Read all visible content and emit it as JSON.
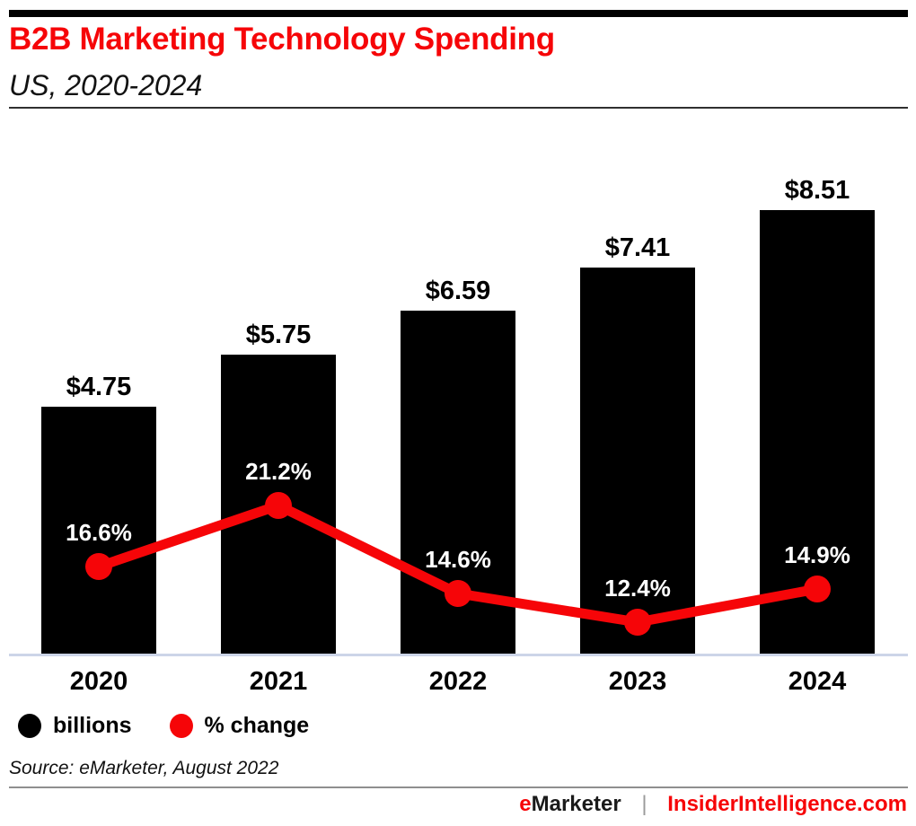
{
  "colors": {
    "red": "#f60508",
    "bar": "#000000",
    "axis_line": "#ccd5e8",
    "text": "#000000",
    "pct_label_text": "#ffffff"
  },
  "header": {
    "title": "B2B Marketing Technology Spending",
    "subtitle": "US, 2020-2024"
  },
  "chart_data": {
    "type": "bar+line",
    "title": "B2B Marketing Technology Spending",
    "subtitle": "US, 2020-2024",
    "categories": [
      "2020",
      "2021",
      "2022",
      "2023",
      "2024"
    ],
    "series": [
      {
        "name": "billions",
        "type": "bar",
        "values": [
          4.75,
          5.75,
          6.59,
          7.41,
          8.51
        ],
        "labels": [
          "$4.75",
          "$5.75",
          "$6.59",
          "$7.41",
          "$8.51"
        ],
        "color": "#000000"
      },
      {
        "name": "% change",
        "type": "line",
        "values": [
          16.6,
          21.2,
          14.6,
          12.4,
          14.9
        ],
        "labels": [
          "16.6%",
          "21.2%",
          "14.6%",
          "12.4%",
          "14.9%"
        ],
        "color": "#f60508"
      }
    ],
    "legend": [
      {
        "label": "billions",
        "color": "#000000"
      },
      {
        "label": "% change",
        "color": "#f60508"
      }
    ],
    "legend_position": "bottom-left",
    "grid": false,
    "xlabel": "",
    "ylabel": ""
  },
  "source": "Source: eMarketer, August 2022",
  "footer": {
    "brand_e": "e",
    "brand_rest": "Marketer",
    "separator": "|",
    "site": "InsiderIntelligence.com"
  }
}
